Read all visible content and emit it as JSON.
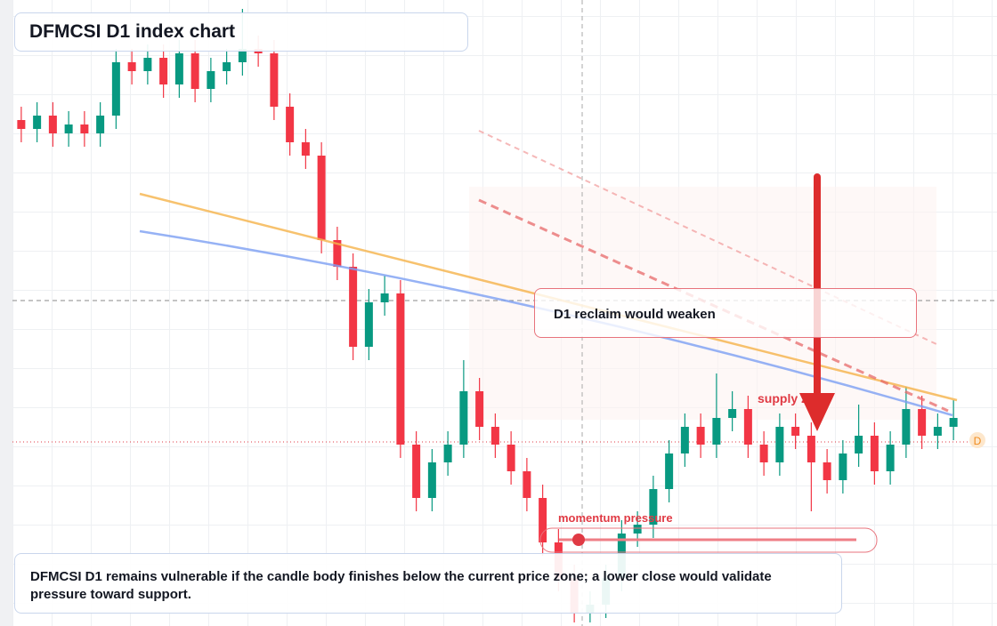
{
  "chart_data": {
    "type": "candlestick",
    "title": "DFMCSI D1 index chart",
    "callout": "D1 reclaim would weaken",
    "zone_label": "supply zone",
    "indicator_label": "momentum pressure",
    "marker_label": "D",
    "caption": "DFMCSI D1 remains vulnerable if the candle body finishes below the current price zone; a lower close would validate pressure toward support.",
    "up_color": "#089981",
    "down_color": "#f23645",
    "ylim": [
      4992,
      6400
    ],
    "open": [
      6130,
      6110,
      6140,
      6100,
      6120,
      6100,
      6140,
      6260,
      6240,
      6270,
      6210,
      6280,
      6200,
      6240,
      6260,
      6290,
      6280,
      6160,
      6080,
      6050,
      5860,
      5800,
      5620,
      5720,
      5740,
      5400,
      5280,
      5360,
      5400,
      5520,
      5440,
      5400,
      5340,
      5280,
      5180,
      5100,
      5020,
      5040,
      5100,
      5200,
      5220,
      5300,
      5380,
      5440,
      5400,
      5460,
      5480,
      5400,
      5360,
      5440,
      5420,
      5360,
      5320,
      5380,
      5420,
      5340,
      5400,
      5480,
      5420,
      5440
    ],
    "high": [
      6160,
      6170,
      6170,
      6150,
      6150,
      6170,
      6290,
      6290,
      6300,
      6300,
      6310,
      6310,
      6270,
      6290,
      6380,
      6320,
      6310,
      6190,
      6110,
      6080,
      5890,
      5830,
      5750,
      5780,
      5770,
      5430,
      5390,
      5430,
      5590,
      5550,
      5470,
      5430,
      5370,
      5310,
      5210,
      5130,
      5070,
      5130,
      5230,
      5250,
      5330,
      5410,
      5470,
      5470,
      5560,
      5520,
      5510,
      5430,
      5470,
      5470,
      5450,
      5390,
      5410,
      5490,
      5450,
      5430,
      5530,
      5510,
      5470,
      5500
    ],
    "low": [
      6080,
      6080,
      6070,
      6070,
      6070,
      6070,
      6110,
      6210,
      6210,
      6180,
      6180,
      6170,
      6170,
      6210,
      6230,
      6250,
      6130,
      6050,
      6020,
      5830,
      5770,
      5590,
      5590,
      5690,
      5370,
      5250,
      5250,
      5330,
      5370,
      5410,
      5370,
      5310,
      5250,
      5150,
      5070,
      5000,
      5000,
      5010,
      5070,
      5170,
      5190,
      5270,
      5350,
      5370,
      5370,
      5430,
      5370,
      5330,
      5330,
      5390,
      5250,
      5290,
      5290,
      5350,
      5310,
      5310,
      5370,
      5390,
      5390,
      5410
    ],
    "close": [
      6110,
      6140,
      6100,
      6120,
      6100,
      6140,
      6260,
      6240,
      6270,
      6210,
      6280,
      6200,
      6240,
      6260,
      6290,
      6280,
      6160,
      6080,
      6050,
      5860,
      5800,
      5620,
      5720,
      5740,
      5400,
      5280,
      5360,
      5400,
      5520,
      5440,
      5400,
      5340,
      5280,
      5180,
      5100,
      5020,
      5040,
      5100,
      5200,
      5220,
      5300,
      5380,
      5440,
      5400,
      5460,
      5480,
      5400,
      5360,
      5440,
      5420,
      5360,
      5320,
      5380,
      5420,
      5340,
      5400,
      5480,
      5420,
      5440,
      5460
    ]
  }
}
